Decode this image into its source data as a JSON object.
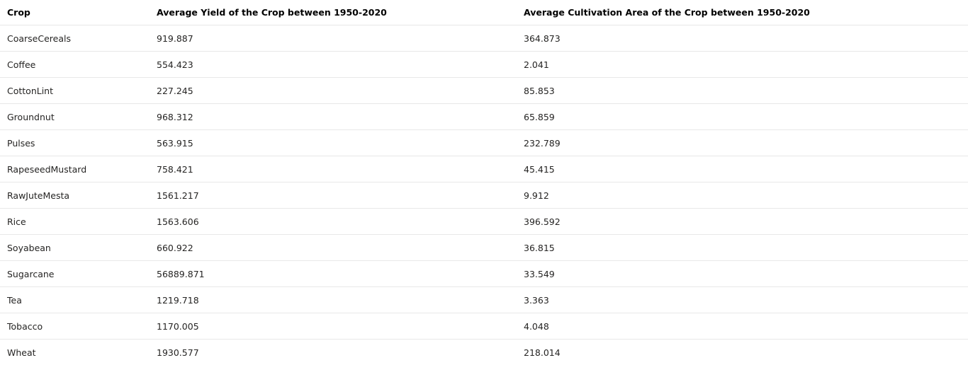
{
  "chart_data": {
    "type": "table",
    "columns": [
      "Crop",
      "Average Yield of the Crop between 1950-2020",
      "Average Cultivation Area of the Crop between 1950-2020"
    ],
    "rows": [
      [
        "CoarseCereals",
        "919.887",
        "364.873"
      ],
      [
        "Coffee",
        "554.423",
        "2.041"
      ],
      [
        "CottonLint",
        "227.245",
        "85.853"
      ],
      [
        "Groundnut",
        "968.312",
        "65.859"
      ],
      [
        "Pulses",
        "563.915",
        "232.789"
      ],
      [
        "RapeseedMustard",
        "758.421",
        "45.415"
      ],
      [
        "RawJuteMesta",
        "1561.217",
        "9.912"
      ],
      [
        "Rice",
        "1563.606",
        "396.592"
      ],
      [
        "Soyabean",
        "660.922",
        "36.815"
      ],
      [
        "Sugarcane",
        "56889.871",
        "33.549"
      ],
      [
        "Tea",
        "1219.718",
        "3.363"
      ],
      [
        "Tobacco",
        "1170.005",
        "4.048"
      ],
      [
        "Wheat",
        "1930.577",
        "218.014"
      ]
    ]
  }
}
